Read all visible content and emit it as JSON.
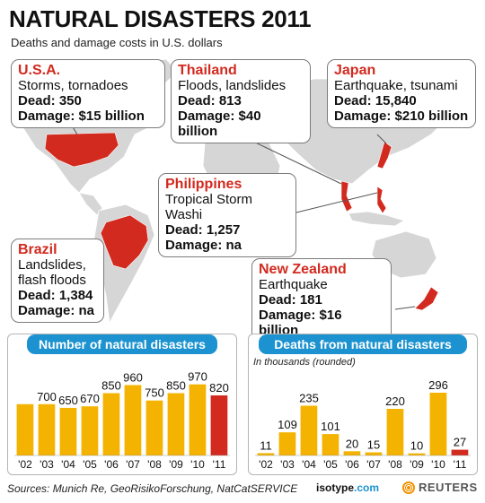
{
  "header": {
    "title": "NATURAL DISASTERS 2011",
    "subtitle": "Deaths and damage costs in U.S. dollars"
  },
  "callouts": [
    {
      "name": "U.S.A.",
      "desc": "Storms, tornadoes",
      "dead": "Dead: 350",
      "damage": "Damage: $15 billion"
    },
    {
      "name": "Thailand",
      "desc": "Floods, landslides",
      "dead": "Dead: 813",
      "damage": "Damage: $40 billion"
    },
    {
      "name": "Japan",
      "desc": "Earthquake, tsunami",
      "dead": "Dead: 15,840",
      "damage": "Damage: $210 billion"
    },
    {
      "name": "Philippines",
      "desc": "Tropical Storm Washi",
      "dead": "Dead: 1,257",
      "damage": "Damage: na"
    },
    {
      "name": "Brazil",
      "desc": "Landslides,",
      "desc2": "flash floods",
      "dead": "Dead: 1,384",
      "damage": "Damage: na"
    },
    {
      "name": "New Zealand",
      "desc": "Earthquake",
      "dead": "Dead: 181",
      "damage": "Damage: $16 billion"
    }
  ],
  "colors": {
    "bar": "#f4b300",
    "highlight": "#d22a1f",
    "header": "#1c93d0",
    "land": "#d6d6d6",
    "affected": "#d22a1f"
  },
  "chart_data": [
    {
      "type": "bar",
      "title": "Number of natural disasters",
      "categories": [
        "'02",
        "'03",
        "'04",
        "'05",
        "'06",
        "'07",
        "'08",
        "'09",
        "'10",
        "'11"
      ],
      "values": [
        700,
        700,
        650,
        670,
        850,
        960,
        750,
        850,
        970,
        820
      ],
      "labels": [
        "",
        "700",
        "650",
        "670",
        "850",
        "960",
        "750",
        "850",
        "970",
        "820"
      ],
      "highlight_index": 9,
      "ylim": [
        0,
        1150
      ]
    },
    {
      "type": "bar",
      "title": "Deaths from natural disasters",
      "subtitle": "In thousands (rounded)",
      "categories": [
        "'02",
        "'03",
        "'04",
        "'05",
        "'06",
        "'07",
        "'08",
        "'09",
        "'10",
        "'11"
      ],
      "values": [
        11,
        109,
        235,
        101,
        20,
        15,
        220,
        10,
        296,
        27
      ],
      "labels": [
        "11",
        "109",
        "235",
        "101",
        "20",
        "15",
        "220",
        "10",
        "296",
        "27"
      ],
      "highlight_index": 9,
      "ylim": [
        0,
        330
      ]
    }
  ],
  "footer": {
    "sources": "Sources: Munich Re, GeoRisikoForschung, NatCatSERVICE",
    "isotype_a": "isotype",
    "isotype_b": ".com",
    "reuters": "REUTERS"
  }
}
